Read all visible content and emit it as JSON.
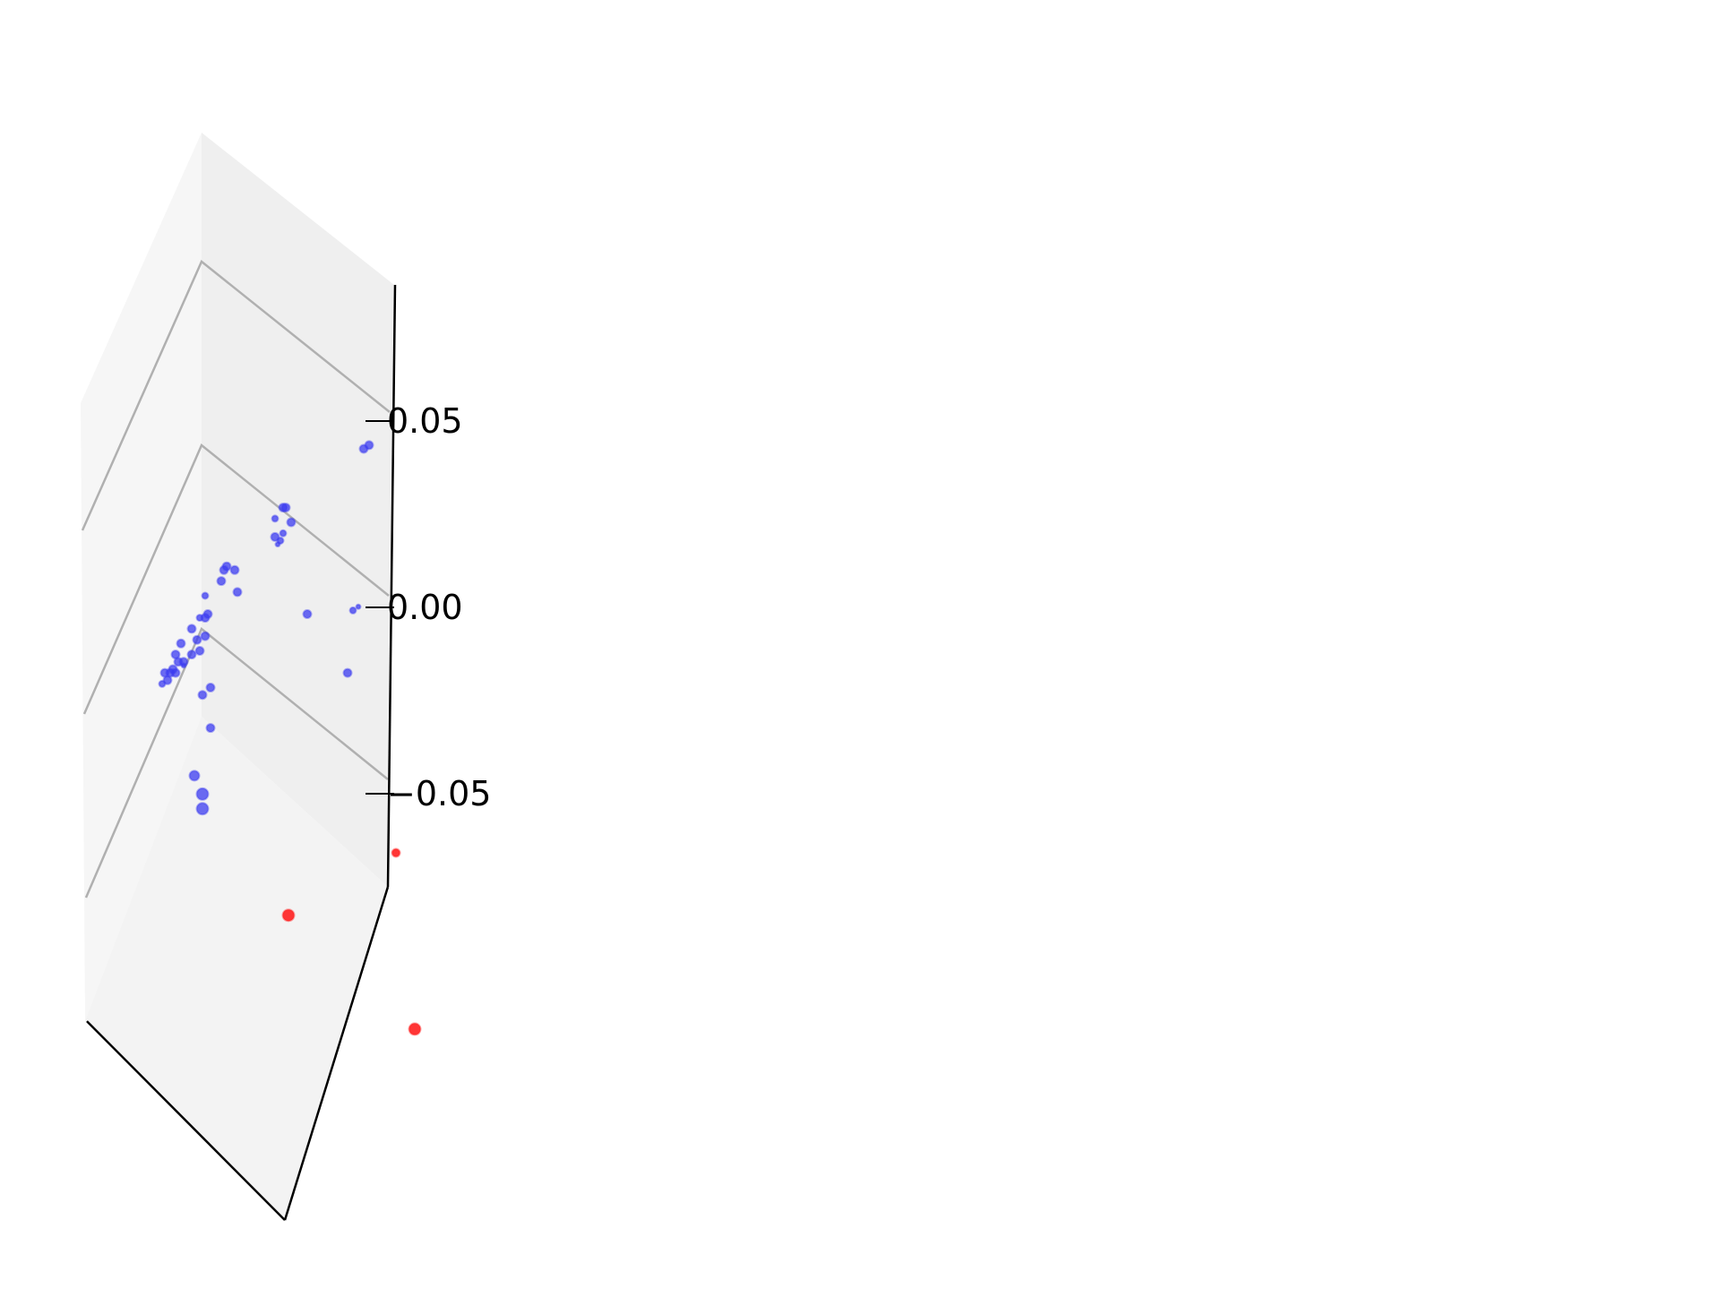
{
  "chart_data": {
    "type": "scatter",
    "projection": "3d",
    "title": "",
    "xlabel": "",
    "ylabel": "",
    "zlabel": "",
    "zlim": [
      -0.05,
      0.05
    ],
    "z_ticks": [
      {
        "value": 0.05,
        "label": "0.05"
      },
      {
        "value": 0.0,
        "label": "0.00"
      },
      {
        "value": -0.05,
        "label": "−0.05"
      }
    ],
    "grid": true,
    "legend": "none",
    "colors": {
      "inside_points": "#3b3bf0",
      "outside_points": "#ff2020",
      "pane": "#f2f2f2",
      "gridline": "#b0b0b0",
      "axis": "#000000"
    },
    "series": [
      {
        "color": "#3b3bf0",
        "points": [
          {
            "u": 0.87,
            "v": 0.04,
            "s": 3
          },
          {
            "u": 0.89,
            "v": 0.041,
            "s": 3
          },
          {
            "u": 0.54,
            "v": 0.021,
            "s": 2
          },
          {
            "u": 0.57,
            "v": 0.024,
            "s": 3
          },
          {
            "u": 0.58,
            "v": 0.024,
            "s": 3
          },
          {
            "u": 0.6,
            "v": 0.02,
            "s": 3
          },
          {
            "u": 0.57,
            "v": 0.017,
            "s": 2
          },
          {
            "u": 0.54,
            "v": 0.016,
            "s": 3
          },
          {
            "u": 0.56,
            "v": 0.015,
            "s": 2
          },
          {
            "u": 0.55,
            "v": 0.014,
            "s": 1
          },
          {
            "u": 0.36,
            "v": 0.008,
            "s": 3
          },
          {
            "u": 0.35,
            "v": 0.007,
            "s": 3
          },
          {
            "u": 0.39,
            "v": 0.007,
            "s": 3
          },
          {
            "u": 0.34,
            "v": 0.004,
            "s": 3
          },
          {
            "u": 0.4,
            "v": 0.001,
            "s": 3
          },
          {
            "u": 0.66,
            "v": -0.005,
            "s": 3
          },
          {
            "u": 0.28,
            "v": 0.0,
            "s": 2
          },
          {
            "u": 0.26,
            "v": -0.006,
            "s": 2
          },
          {
            "u": 0.28,
            "v": -0.006,
            "s": 3
          },
          {
            "u": 0.29,
            "v": -0.005,
            "s": 3
          },
          {
            "u": 0.23,
            "v": -0.009,
            "s": 3
          },
          {
            "u": 0.25,
            "v": -0.012,
            "s": 3
          },
          {
            "u": 0.19,
            "v": -0.013,
            "s": 3
          },
          {
            "u": 0.28,
            "v": -0.011,
            "s": 3
          },
          {
            "u": 0.26,
            "v": -0.015,
            "s": 3
          },
          {
            "u": 0.23,
            "v": -0.016,
            "s": 3
          },
          {
            "u": 0.17,
            "v": -0.016,
            "s": 3
          },
          {
            "u": 0.18,
            "v": -0.018,
            "s": 3
          },
          {
            "u": 0.2,
            "v": -0.018,
            "s": 3
          },
          {
            "u": 0.16,
            "v": -0.02,
            "s": 3
          },
          {
            "u": 0.17,
            "v": -0.021,
            "s": 3
          },
          {
            "u": 0.15,
            "v": -0.021,
            "s": 3
          },
          {
            "u": 0.13,
            "v": -0.021,
            "s": 3
          },
          {
            "u": 0.14,
            "v": -0.023,
            "s": 3
          },
          {
            "u": 0.12,
            "v": -0.024,
            "s": 2
          },
          {
            "u": 0.2,
            "v": -0.019,
            "s": 1
          },
          {
            "u": 0.3,
            "v": -0.025,
            "s": 3
          },
          {
            "u": 0.27,
            "v": -0.027,
            "s": 3
          },
          {
            "u": 0.83,
            "v": -0.004,
            "s": 2
          },
          {
            "u": 0.85,
            "v": -0.003,
            "s": 1
          },
          {
            "u": 0.81,
            "v": -0.021,
            "s": 3
          },
          {
            "u": 0.3,
            "v": -0.036,
            "s": 3
          },
          {
            "u": 0.24,
            "v": -0.049,
            "s": 4
          },
          {
            "u": 0.27,
            "v": -0.054,
            "s": 5
          },
          {
            "u": 0.27,
            "v": -0.058,
            "s": 5
          }
        ]
      },
      {
        "color": "#ff2020",
        "points": [
          {
            "u": 0.99,
            "v": -0.07,
            "s": 3
          },
          {
            "u": 0.59,
            "v": -0.087,
            "s": 5
          },
          {
            "u": 1.06,
            "v": -0.118,
            "s": 5
          }
        ]
      }
    ]
  }
}
